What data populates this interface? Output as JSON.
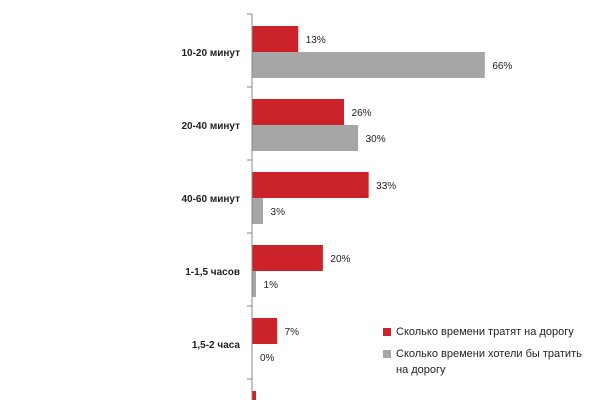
{
  "chart_data": {
    "type": "bar",
    "orientation": "horizontal",
    "categories": [
      "10-20 минут",
      "20-40 минут",
      "40-60 минут",
      "1-1,5 часов",
      "1,5-2 часа",
      ""
    ],
    "series": [
      {
        "name": "Сколько времени тратят на дорогу",
        "color": "#cc2229",
        "values": [
          13,
          26,
          33,
          20,
          7,
          1
        ]
      },
      {
        "name": "Сколько времени хотели бы тратить на дорогу",
        "color": "#a6a6a6",
        "values": [
          66,
          30,
          3,
          1,
          0,
          null
        ]
      }
    ],
    "value_labels": [
      [
        "13%",
        "26%",
        "33%",
        "20%",
        "7%",
        ""
      ],
      [
        "66%",
        "30%",
        "3%",
        "1%",
        "0%",
        ""
      ]
    ],
    "xlim": [
      0,
      80
    ],
    "grid": false,
    "legend_position": "bottom-right"
  },
  "legend": {
    "items": [
      {
        "label": "Сколько времени тратят на дорогу",
        "color": "#cc2229"
      },
      {
        "label": "Сколько времени хотели бы тратить на дорогу",
        "color": "#a6a6a6"
      }
    ]
  }
}
